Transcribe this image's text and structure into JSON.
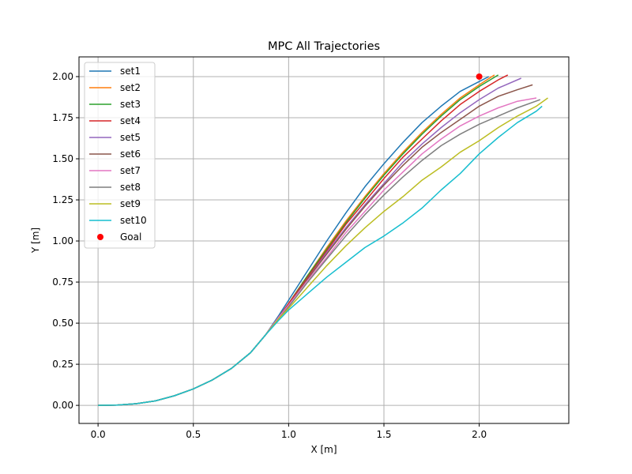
{
  "chart_data": {
    "type": "line",
    "title": "MPC All Trajectories",
    "xlabel": "X [m]",
    "ylabel": "Y [m]",
    "xlim": [
      -0.1,
      2.47
    ],
    "ylim": [
      -0.11,
      2.12
    ],
    "xticks": [
      0.0,
      0.5,
      1.0,
      1.5,
      2.0
    ],
    "xtick_labels": [
      "0.0",
      "0.5",
      "1.0",
      "1.5",
      "2.0"
    ],
    "yticks": [
      0.0,
      0.25,
      0.5,
      0.75,
      1.0,
      1.25,
      1.5,
      1.75,
      2.0
    ],
    "ytick_labels": [
      "0.00",
      "0.25",
      "0.50",
      "0.75",
      "1.00",
      "1.25",
      "1.50",
      "1.75",
      "2.00"
    ],
    "grid": true,
    "legend_position": "upper-left",
    "shared_prefix": [
      [
        0.0,
        0.0
      ],
      [
        0.1,
        0.002
      ],
      [
        0.2,
        0.01
      ],
      [
        0.3,
        0.027
      ],
      [
        0.4,
        0.058
      ],
      [
        0.5,
        0.1
      ],
      [
        0.6,
        0.155
      ],
      [
        0.7,
        0.225
      ],
      [
        0.8,
        0.32
      ],
      [
        0.88,
        0.43
      ]
    ],
    "series": [
      {
        "name": "set1",
        "color": "#1f77b4",
        "points": [
          [
            0.95,
            0.55
          ],
          [
            1.0,
            0.64
          ],
          [
            1.1,
            0.82
          ],
          [
            1.2,
            1.0
          ],
          [
            1.3,
            1.17
          ],
          [
            1.4,
            1.33
          ],
          [
            1.5,
            1.47
          ],
          [
            1.6,
            1.6
          ],
          [
            1.7,
            1.72
          ],
          [
            1.8,
            1.82
          ],
          [
            1.9,
            1.91
          ],
          [
            2.0,
            1.97
          ],
          [
            2.05,
            2.0
          ]
        ]
      },
      {
        "name": "set2",
        "color": "#ff7f0e",
        "points": [
          [
            0.95,
            0.54
          ],
          [
            1.0,
            0.62
          ],
          [
            1.1,
            0.79
          ],
          [
            1.2,
            0.96
          ],
          [
            1.3,
            1.12
          ],
          [
            1.4,
            1.27
          ],
          [
            1.5,
            1.41
          ],
          [
            1.6,
            1.54
          ],
          [
            1.7,
            1.66
          ],
          [
            1.8,
            1.77
          ],
          [
            1.9,
            1.87
          ],
          [
            2.0,
            1.95
          ],
          [
            2.08,
            2.01
          ]
        ]
      },
      {
        "name": "set3",
        "color": "#2ca02c",
        "points": [
          [
            0.95,
            0.54
          ],
          [
            1.0,
            0.62
          ],
          [
            1.1,
            0.79
          ],
          [
            1.2,
            0.95
          ],
          [
            1.3,
            1.11
          ],
          [
            1.4,
            1.26
          ],
          [
            1.5,
            1.4
          ],
          [
            1.6,
            1.53
          ],
          [
            1.7,
            1.65
          ],
          [
            1.8,
            1.76
          ],
          [
            1.9,
            1.86
          ],
          [
            2.0,
            1.94
          ],
          [
            2.1,
            2.01
          ]
        ]
      },
      {
        "name": "set4",
        "color": "#d62728",
        "points": [
          [
            0.95,
            0.54
          ],
          [
            1.0,
            0.62
          ],
          [
            1.1,
            0.78
          ],
          [
            1.2,
            0.94
          ],
          [
            1.3,
            1.1
          ],
          [
            1.4,
            1.24
          ],
          [
            1.5,
            1.38
          ],
          [
            1.6,
            1.51
          ],
          [
            1.7,
            1.62
          ],
          [
            1.8,
            1.73
          ],
          [
            1.9,
            1.83
          ],
          [
            2.0,
            1.91
          ],
          [
            2.1,
            1.98
          ],
          [
            2.15,
            2.01
          ]
        ]
      },
      {
        "name": "set5",
        "color": "#9467bd",
        "points": [
          [
            0.95,
            0.54
          ],
          [
            1.0,
            0.61
          ],
          [
            1.1,
            0.77
          ],
          [
            1.2,
            0.93
          ],
          [
            1.3,
            1.08
          ],
          [
            1.4,
            1.22
          ],
          [
            1.5,
            1.35
          ],
          [
            1.6,
            1.48
          ],
          [
            1.7,
            1.59
          ],
          [
            1.8,
            1.69
          ],
          [
            1.9,
            1.78
          ],
          [
            2.0,
            1.86
          ],
          [
            2.1,
            1.93
          ],
          [
            2.22,
            1.99
          ]
        ]
      },
      {
        "name": "set6",
        "color": "#8c564b",
        "points": [
          [
            0.95,
            0.54
          ],
          [
            1.0,
            0.61
          ],
          [
            1.1,
            0.77
          ],
          [
            1.2,
            0.92
          ],
          [
            1.3,
            1.07
          ],
          [
            1.4,
            1.21
          ],
          [
            1.5,
            1.34
          ],
          [
            1.6,
            1.46
          ],
          [
            1.7,
            1.57
          ],
          [
            1.8,
            1.66
          ],
          [
            1.9,
            1.74
          ],
          [
            2.0,
            1.82
          ],
          [
            2.1,
            1.88
          ],
          [
            2.2,
            1.92
          ],
          [
            2.28,
            1.95
          ]
        ]
      },
      {
        "name": "set7",
        "color": "#e377c2",
        "points": [
          [
            0.95,
            0.54
          ],
          [
            1.0,
            0.61
          ],
          [
            1.1,
            0.76
          ],
          [
            1.2,
            0.9
          ],
          [
            1.3,
            1.05
          ],
          [
            1.4,
            1.18
          ],
          [
            1.5,
            1.31
          ],
          [
            1.6,
            1.42
          ],
          [
            1.7,
            1.53
          ],
          [
            1.8,
            1.62
          ],
          [
            1.9,
            1.7
          ],
          [
            2.0,
            1.76
          ],
          [
            2.1,
            1.81
          ],
          [
            2.2,
            1.85
          ],
          [
            2.3,
            1.87
          ]
        ]
      },
      {
        "name": "set8",
        "color": "#7f7f7f",
        "points": [
          [
            0.95,
            0.53
          ],
          [
            1.0,
            0.6
          ],
          [
            1.1,
            0.75
          ],
          [
            1.2,
            0.89
          ],
          [
            1.3,
            1.03
          ],
          [
            1.4,
            1.16
          ],
          [
            1.5,
            1.28
          ],
          [
            1.6,
            1.39
          ],
          [
            1.7,
            1.49
          ],
          [
            1.8,
            1.58
          ],
          [
            1.9,
            1.65
          ],
          [
            2.0,
            1.71
          ],
          [
            2.1,
            1.76
          ],
          [
            2.2,
            1.81
          ],
          [
            2.32,
            1.86
          ]
        ]
      },
      {
        "name": "set9",
        "color": "#bcbd22",
        "points": [
          [
            0.95,
            0.53
          ],
          [
            1.0,
            0.59
          ],
          [
            1.1,
            0.72
          ],
          [
            1.2,
            0.85
          ],
          [
            1.3,
            0.97
          ],
          [
            1.4,
            1.08
          ],
          [
            1.5,
            1.18
          ],
          [
            1.6,
            1.27
          ],
          [
            1.7,
            1.37
          ],
          [
            1.8,
            1.45
          ],
          [
            1.9,
            1.54
          ],
          [
            2.0,
            1.61
          ],
          [
            2.1,
            1.69
          ],
          [
            2.2,
            1.76
          ],
          [
            2.3,
            1.82
          ],
          [
            2.36,
            1.87
          ]
        ]
      },
      {
        "name": "set10",
        "color": "#17becf",
        "points": [
          [
            0.95,
            0.52
          ],
          [
            1.0,
            0.58
          ],
          [
            1.1,
            0.68
          ],
          [
            1.2,
            0.78
          ],
          [
            1.3,
            0.87
          ],
          [
            1.4,
            0.96
          ],
          [
            1.5,
            1.03
          ],
          [
            1.6,
            1.11
          ],
          [
            1.7,
            1.2
          ],
          [
            1.8,
            1.31
          ],
          [
            1.9,
            1.41
          ],
          [
            2.0,
            1.53
          ],
          [
            2.1,
            1.63
          ],
          [
            2.2,
            1.72
          ],
          [
            2.3,
            1.79
          ],
          [
            2.33,
            1.82
          ]
        ]
      }
    ],
    "goal": {
      "name": "Goal",
      "x": 2.0,
      "y": 2.0,
      "color": "#ff0000"
    }
  }
}
